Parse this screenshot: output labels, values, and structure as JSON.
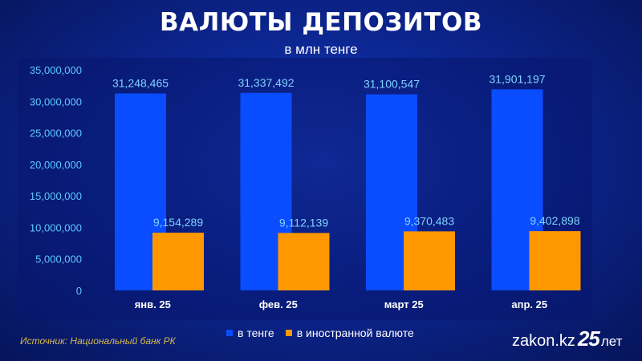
{
  "header": {
    "title": "ВАЛЮТЫ ДЕПОЗИТОВ",
    "subtitle": "в млн тенге"
  },
  "footer": {
    "source": "Источник: Национальный банк РК",
    "logo_name": "zakon.kz",
    "logo_number": "25",
    "logo_suffix": "лет"
  },
  "colors": {
    "tenge": "#0a4cff",
    "foreign": "#ff9800",
    "axis_text": "#5fc8ff",
    "value_label": "#7fd3ff"
  },
  "chart_data": {
    "type": "bar",
    "title": "ВАЛЮТЫ ДЕПОЗИТОВ",
    "subtitle": "в млн тенге",
    "categories": [
      "янв. 25",
      "фев. 25",
      "март 25",
      "апр. 25"
    ],
    "series": [
      {
        "name": "в тенге",
        "values": [
          31248465,
          31337492,
          31100547,
          31901197
        ],
        "labels": [
          "31,248,465",
          "31,337,492",
          "31,100,547",
          "31,901,197"
        ]
      },
      {
        "name": "в иностранной валюте",
        "values": [
          9154289,
          9112139,
          9370483,
          9402898
        ],
        "labels": [
          "9,154,289",
          "9,112,139",
          "9,370,483",
          "9,402,898"
        ]
      }
    ],
    "ylim": [
      0,
      35000000
    ],
    "yticks": [
      0,
      5000000,
      10000000,
      15000000,
      20000000,
      25000000,
      30000000,
      35000000
    ],
    "ytick_labels": [
      "0",
      "5,000,000",
      "10,000,000",
      "15,000,000",
      "20,000,000",
      "25,000,000",
      "30,000,000",
      "35,000,000"
    ],
    "grid": false,
    "legend_position": "bottom-center"
  }
}
